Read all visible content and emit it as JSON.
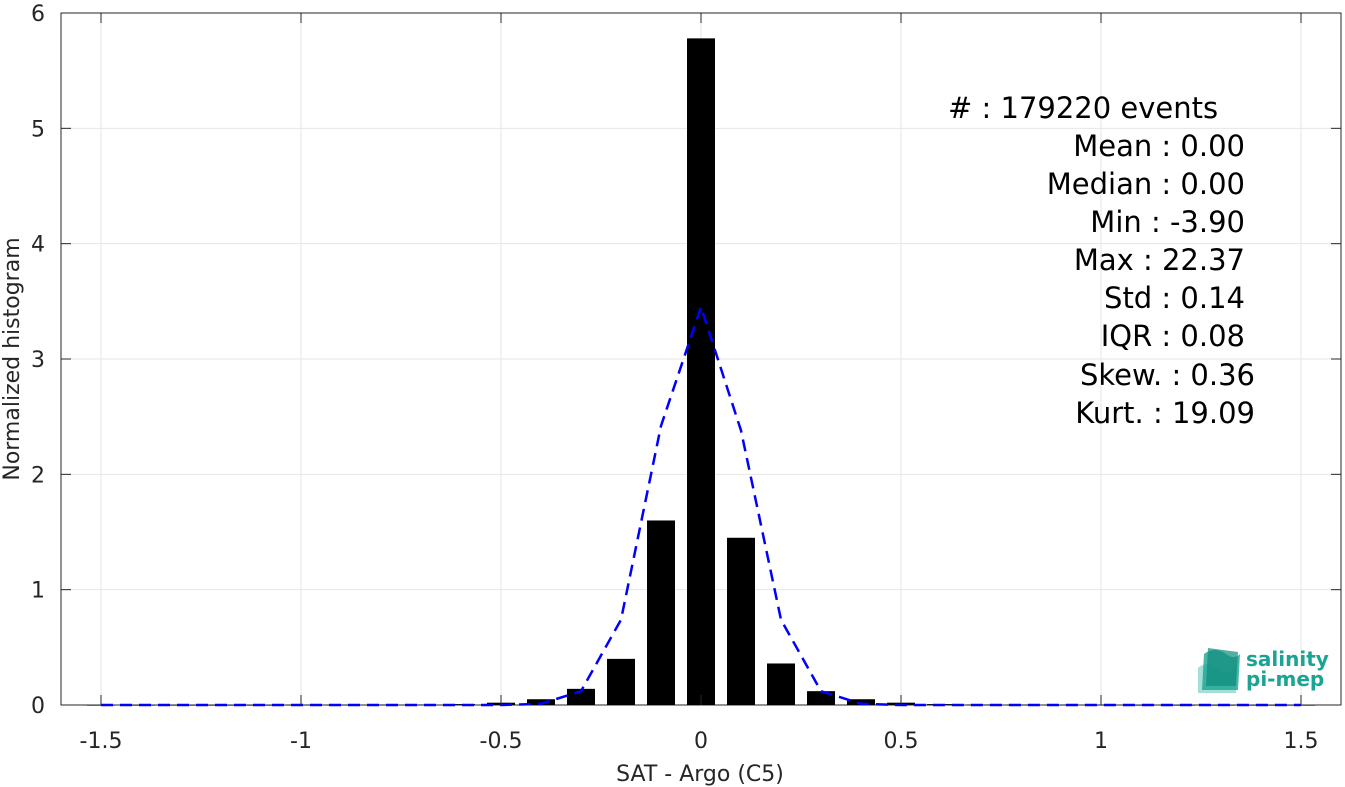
{
  "chart_data": {
    "type": "bar",
    "title": "",
    "xlabel": "SAT - Argo (C5)",
    "ylabel": "Normalized histogram",
    "xlim": [
      -1.6,
      1.6
    ],
    "ylim": [
      0,
      6
    ],
    "grid": true,
    "xticks": [
      -1.5,
      -1,
      -0.5,
      0,
      0.5,
      1,
      1.5
    ],
    "xtick_labels": [
      "-1.5",
      "-1",
      "-0.5",
      "0",
      "0.5",
      "1",
      "1.5"
    ],
    "yticks": [
      0,
      1,
      2,
      3,
      4,
      5,
      6
    ],
    "ytick_labels": [
      "0",
      "1",
      "2",
      "3",
      "4",
      "5",
      "6"
    ],
    "bar_width": 0.07,
    "bar_color": "#000000",
    "bars": {
      "x": [
        -1.5,
        -1.4,
        -1.3,
        -1.2,
        -1.1,
        -1.0,
        -0.9,
        -0.8,
        -0.7,
        -0.6,
        -0.5,
        -0.4,
        -0.3,
        -0.2,
        -0.1,
        0.0,
        0.1,
        0.2,
        0.3,
        0.4,
        0.5,
        0.6,
        0.7,
        0.8,
        0.9,
        1.0,
        1.1,
        1.2,
        1.3,
        1.4,
        1.5
      ],
      "y": [
        0,
        0,
        0,
        0,
        0,
        0.002,
        0.002,
        0.003,
        0.004,
        0.008,
        0.02,
        0.05,
        0.14,
        0.4,
        1.6,
        5.78,
        1.45,
        0.36,
        0.12,
        0.05,
        0.02,
        0.008,
        0.004,
        0.003,
        0.002,
        0.002,
        0,
        0,
        0,
        0,
        0
      ]
    },
    "series": [
      {
        "type": "line",
        "style": "dashed",
        "color": "#0000ff",
        "x": [
          -1.5,
          -1.4,
          -1.3,
          -1.2,
          -1.1,
          -1.0,
          -0.9,
          -0.8,
          -0.7,
          -0.6,
          -0.5,
          -0.4,
          -0.3,
          -0.2,
          -0.1,
          0.0,
          0.1,
          0.2,
          0.3,
          0.4,
          0.5,
          0.6,
          0.7,
          0.8,
          0.9,
          1.0,
          1.1,
          1.2,
          1.3,
          1.4,
          1.5
        ],
        "y": [
          0,
          0,
          0,
          0,
          0,
          0,
          0,
          0,
          0,
          0,
          0,
          0.01,
          0.12,
          0.74,
          2.42,
          3.45,
          2.38,
          0.74,
          0.12,
          0.01,
          0,
          0,
          0,
          0,
          0,
          0,
          0,
          0,
          0,
          0,
          0
        ]
      }
    ],
    "annotations": [
      "#  : 179220 events",
      "Mean : 0.00",
      "Median : 0.00",
      "Min : -3.90",
      "Max : 22.37",
      "Std : 0.14",
      "IQR : 0.08",
      "Skew. : 0.36",
      "Kurt. : 19.09"
    ]
  },
  "logo": {
    "line1": "salinity",
    "line2": "pi-mep",
    "color": "#1aa493"
  }
}
